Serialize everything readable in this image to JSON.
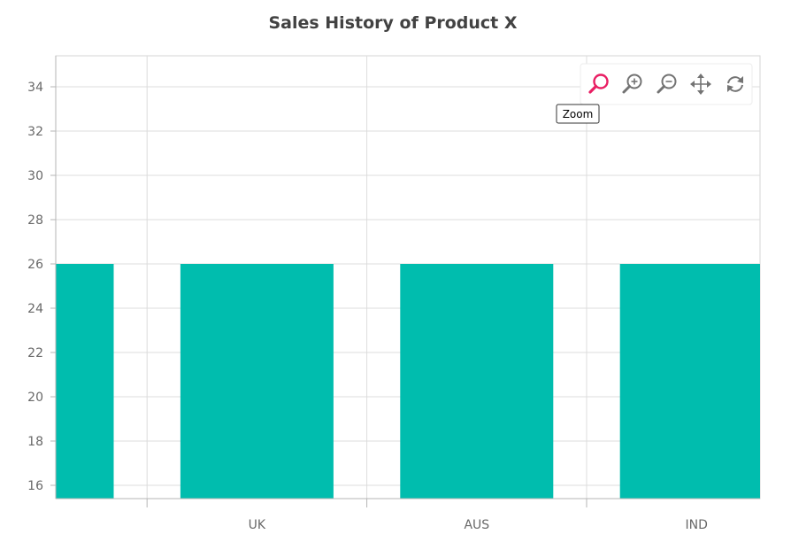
{
  "chart_data": {
    "type": "bar",
    "title": "Sales History of Product X",
    "categories": [
      "",
      "UK",
      "AUS",
      "IND"
    ],
    "values": [
      26,
      26,
      26,
      26
    ],
    "xlabel": "",
    "ylabel": "",
    "ylim": [
      15.4,
      35.4
    ],
    "yticks": [
      16,
      18,
      20,
      22,
      24,
      26,
      28,
      30,
      32,
      34
    ],
    "grid": true,
    "legend": "none",
    "bar_color": "#00bdae"
  },
  "toolbar": {
    "tooltip": "Zoom",
    "active_color": "#e91e63",
    "icon_color": "#737373",
    "buttons": [
      {
        "name": "zoom-icon",
        "active": true
      },
      {
        "name": "zoom-in-icon",
        "active": false
      },
      {
        "name": "zoom-out-icon",
        "active": false
      },
      {
        "name": "pan-icon",
        "active": false
      },
      {
        "name": "reset-icon",
        "active": false
      }
    ]
  }
}
